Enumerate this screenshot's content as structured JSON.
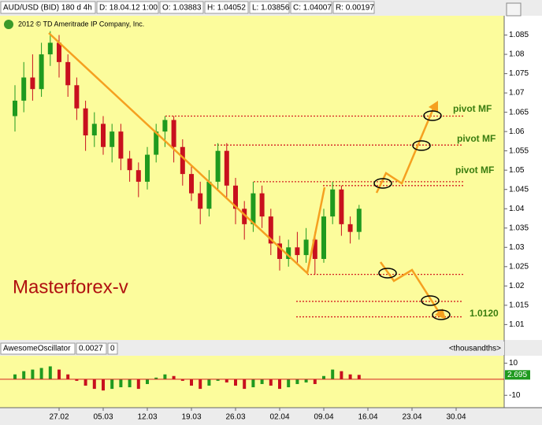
{
  "header": {
    "symbol": "AUD/USD (BID) 180 d 4h",
    "date": "D: 18.04.12 1:00",
    "open": "O: 1.03883",
    "high": "H: 1.04052",
    "low": "L: 1.03856",
    "close": "C: 1.04007",
    "range": "R: 0.00197"
  },
  "copyright": "2012 © TD Ameritrade IP Company, Inc.",
  "watermark": "Masterforex-v",
  "chart_data": [
    {
      "type": "candlestick",
      "categories": [
        null,
        null,
        null,
        null,
        null,
        "27.02",
        null,
        null,
        null,
        null,
        "05.03",
        null,
        null,
        null,
        null,
        "12.03",
        null,
        null,
        null,
        null,
        "19.03",
        null,
        null,
        null,
        null,
        "26.03",
        null,
        null,
        null,
        null,
        "02.04",
        null,
        null,
        null,
        null,
        "09.04",
        null,
        null,
        null,
        null,
        "16.04",
        null,
        null,
        null,
        null,
        "23.04",
        null,
        null,
        null,
        null,
        "30.04",
        null,
        null,
        null,
        null
      ],
      "open": [
        1.064,
        1.068,
        1.074,
        1.071,
        1.08,
        1.083,
        1.078,
        1.072,
        1.066,
        1.059,
        1.062,
        1.056,
        1.06,
        1.053,
        1.05,
        1.047,
        1.054,
        1.06,
        1.063,
        1.056,
        1.049,
        1.044,
        1.04,
        1.047,
        1.055,
        1.046,
        1.04,
        1.036,
        1.044,
        1.038,
        1.031,
        1.027,
        1.03,
        1.028,
        1.032,
        1.027,
        1.038,
        1.045,
        1.036,
        1.034,
        null,
        null,
        null,
        null,
        null,
        null,
        null,
        null,
        null,
        null,
        null,
        null,
        null,
        null,
        null
      ],
      "high": [
        1.072,
        1.078,
        1.08,
        1.083,
        1.086,
        1.085,
        1.08,
        1.074,
        1.068,
        1.065,
        1.064,
        1.062,
        1.062,
        1.055,
        1.052,
        1.056,
        1.062,
        1.064,
        1.064,
        1.058,
        1.051,
        1.047,
        1.05,
        1.057,
        1.057,
        1.048,
        1.042,
        1.047,
        1.046,
        1.04,
        1.033,
        1.032,
        1.034,
        1.035,
        1.034,
        1.04,
        1.047,
        1.046,
        1.038,
        1.041,
        null,
        null,
        null,
        null,
        null,
        null,
        null,
        null,
        null,
        null,
        null,
        null,
        null,
        null,
        null
      ],
      "low": [
        1.06,
        1.065,
        1.068,
        1.069,
        1.077,
        1.074,
        1.069,
        1.063,
        1.055,
        1.056,
        1.054,
        1.052,
        1.05,
        1.047,
        1.043,
        1.045,
        1.052,
        1.056,
        1.052,
        1.046,
        1.042,
        1.036,
        1.038,
        1.045,
        1.043,
        1.036,
        1.032,
        1.034,
        1.035,
        1.028,
        1.024,
        1.025,
        1.026,
        1.026,
        1.023,
        1.026,
        1.036,
        1.033,
        1.031,
        1.032,
        null,
        null,
        null,
        null,
        null,
        null,
        null,
        null,
        null,
        null,
        null,
        null,
        null,
        null,
        null
      ],
      "close": [
        1.068,
        1.074,
        1.071,
        1.08,
        1.083,
        1.078,
        1.072,
        1.066,
        1.059,
        1.062,
        1.056,
        1.06,
        1.053,
        1.05,
        1.047,
        1.054,
        1.06,
        1.063,
        1.056,
        1.049,
        1.044,
        1.04,
        1.047,
        1.055,
        1.046,
        1.04,
        1.036,
        1.044,
        1.038,
        1.031,
        1.027,
        1.03,
        1.028,
        1.032,
        1.027,
        1.038,
        1.045,
        1.036,
        1.034,
        1.04,
        null,
        null,
        null,
        null,
        null,
        null,
        null,
        null,
        null,
        null,
        null,
        null,
        null,
        null,
        null
      ],
      "up_color": "#1f9a1f",
      "down_color": "#c8101e",
      "ylim": [
        1.006,
        1.09
      ],
      "yticks": [
        1.01,
        1.015,
        1.02,
        1.025,
        1.03,
        1.035,
        1.04,
        1.045,
        1.05,
        1.055,
        1.06,
        1.065,
        1.07,
        1.075,
        1.08,
        1.085
      ],
      "levels": [
        1.064,
        1.0565,
        1.047,
        1.046,
        1.023,
        1.016,
        1.012
      ],
      "level_color": "#d42020",
      "annotations": [
        "pivot MF",
        "pivot MF",
        "pivot MF",
        "1.0120"
      ]
    },
    {
      "type": "oscillator",
      "title": "AwesomeOscillator",
      "current": "0.0027",
      "zero": "0",
      "unit": "<thousandths>",
      "values": [
        3,
        5,
        6,
        7,
        8,
        6,
        3,
        -1,
        -4,
        -6,
        -7,
        -6,
        -5,
        -5,
        -6,
        -3,
        1,
        3,
        2,
        -1,
        -4,
        -6,
        -4,
        -1,
        -2,
        -4,
        -6,
        -5,
        -3,
        -4,
        -6,
        -5,
        -3,
        -2,
        -3,
        2,
        6,
        5,
        3,
        2.7,
        null,
        null,
        null,
        null,
        null,
        null,
        null,
        null,
        null,
        null,
        null,
        null,
        null,
        null,
        null
      ],
      "last_value": 2.695,
      "ylim": [
        -17.7,
        14.6
      ],
      "yticks": [
        10,
        -10
      ]
    }
  ]
}
